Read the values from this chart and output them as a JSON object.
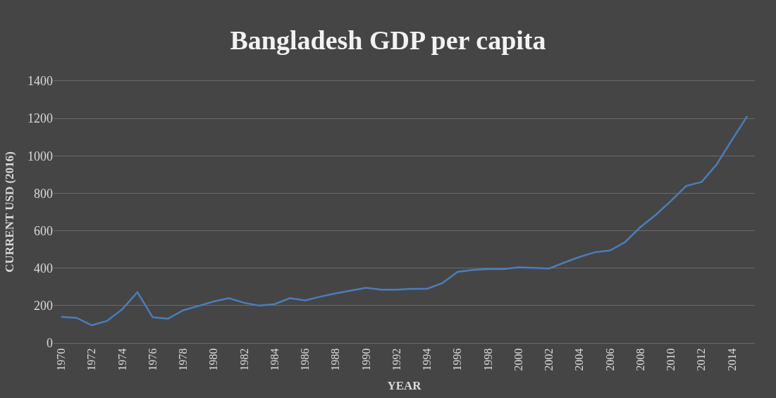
{
  "chart_data": {
    "type": "line",
    "title": "Bangladesh GDP per capita",
    "xlabel": "YEAR",
    "ylabel": "CURRENT USD (2016)",
    "categories": [
      "1970",
      null,
      "1972",
      null,
      "1974",
      null,
      "1976",
      null,
      "1978",
      null,
      "1980",
      null,
      "1982",
      null,
      "1984",
      null,
      "1986",
      null,
      "1988",
      null,
      "1990",
      null,
      "1992",
      null,
      "1994",
      null,
      "1996",
      null,
      "1998",
      null,
      "2000",
      null,
      "2002",
      null,
      "2004",
      null,
      "2006",
      null,
      "2008",
      null,
      "2010",
      null,
      "2012",
      null,
      "2014",
      null
    ],
    "series": [
      {
        "color": "#4a7ebb",
        "values": [
          140,
          135,
          95,
          118,
          180,
          272,
          138,
          130,
          175,
          198,
          222,
          240,
          215,
          200,
          208,
          240,
          228,
          248,
          265,
          280,
          295,
          285,
          285,
          290,
          290,
          320,
          380,
          390,
          395,
          395,
          405,
          402,
          398,
          430,
          460,
          485,
          495,
          540,
          620,
          685,
          760,
          840,
          860,
          955,
          1085,
          1212
        ]
      }
    ],
    "ylim": [
      0,
      1400
    ],
    "yticks": [
      0,
      200,
      400,
      600,
      800,
      1000,
      1200,
      1400
    ],
    "grid": "y",
    "marker": "none",
    "line_style": "solid"
  }
}
